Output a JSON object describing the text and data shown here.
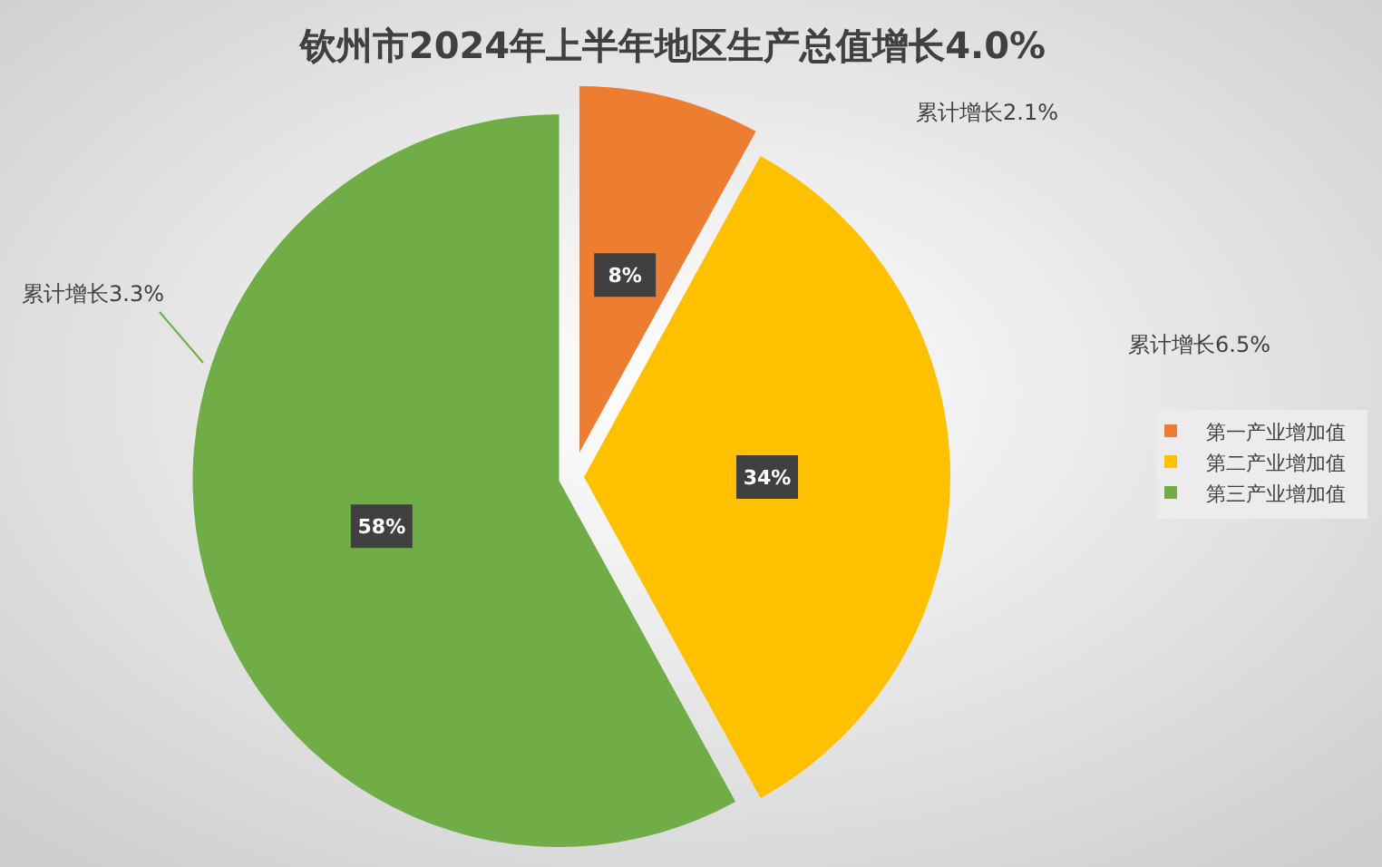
{
  "chart_data": {
    "type": "pie",
    "title": "钦州市2024年上半年地区生产总值增长4.0%",
    "categories": [
      "第一产业增加值",
      "第二产业增加值",
      "第三产业增加值"
    ],
    "values": [
      8,
      34,
      58
    ],
    "colors": [
      "#ed7d31",
      "#ffc000",
      "#70ad47"
    ],
    "value_labels": [
      "8%",
      "34%",
      "58%"
    ],
    "annotations": [
      "累计增长2.1%",
      "累计增长6.5%",
      "累计增长3.3%"
    ],
    "legend": "right"
  }
}
